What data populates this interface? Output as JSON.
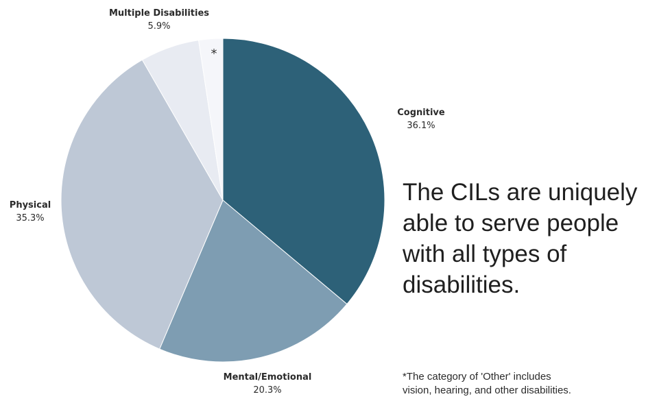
{
  "chart_data": {
    "type": "pie",
    "start_angle_deg": 0,
    "direction": "clockwise",
    "slices": [
      {
        "label": "Cognitive",
        "value_label": "36.1%",
        "value": 36.1,
        "color": "#2d6178"
      },
      {
        "label": "Mental/Emotional",
        "value_label": "20.3%",
        "value": 20.3,
        "color": "#7e9db2"
      },
      {
        "label": "Physical",
        "value_label": "35.3%",
        "value": 35.3,
        "color": "#bec8d6"
      },
      {
        "label": "Multiple Disabilities",
        "value_label": "5.9%",
        "value": 5.9,
        "color": "#e8ebf2"
      },
      {
        "label": "",
        "value_label": "",
        "value": 2.4,
        "color": "#f5f6fa",
        "marker": "*"
      }
    ],
    "legend": "none"
  },
  "text": {
    "headline_lines": [
      "The CILs are uniquely",
      "able to serve people",
      "with all types of",
      "disabilities."
    ],
    "footnote_lines": [
      "*The category of 'Other' includes",
      "vision, hearing, and other disabilities."
    ]
  }
}
